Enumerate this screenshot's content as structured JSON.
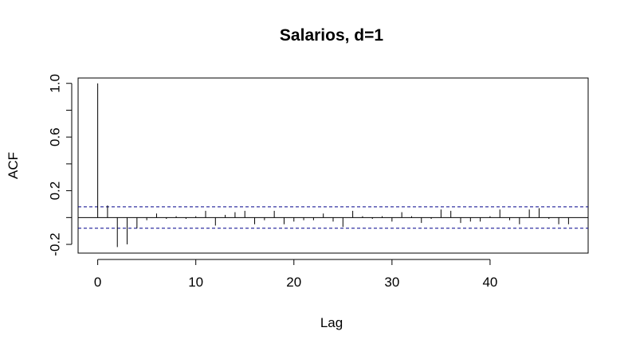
{
  "chart_data": {
    "type": "bar",
    "title": "Salarios, d=1",
    "xlabel": "Lag",
    "ylabel": "ACF",
    "xlim": [
      -2,
      50
    ],
    "ylim": [
      -0.265,
      1.04
    ],
    "x_ticks": [
      0,
      10,
      20,
      30,
      40
    ],
    "x_tick_labels": [
      "0",
      "10",
      "20",
      "30",
      "40"
    ],
    "y_ticks": [
      -0.2,
      0.2,
      0.6,
      1.0
    ],
    "y_tick_labels": [
      "-0.2",
      "0.2",
      "0.6",
      "1.0"
    ],
    "y_minor_ticks": [
      0.0,
      0.4,
      0.8
    ],
    "confidence_band": [
      -0.08,
      0.08
    ],
    "grid": false,
    "lags": [
      0,
      1,
      2,
      3,
      4,
      5,
      6,
      7,
      8,
      9,
      10,
      11,
      12,
      13,
      14,
      15,
      16,
      17,
      18,
      19,
      20,
      21,
      22,
      23,
      24,
      25,
      26,
      27,
      28,
      29,
      30,
      31,
      32,
      33,
      34,
      35,
      36,
      37,
      38,
      39,
      40,
      41,
      42,
      43,
      44,
      45,
      46,
      47,
      48
    ],
    "values": [
      1.0,
      0.09,
      -0.22,
      -0.2,
      -0.08,
      -0.02,
      0.03,
      -0.01,
      0.01,
      -0.01,
      0.01,
      0.05,
      -0.06,
      0.02,
      0.04,
      0.05,
      -0.05,
      -0.02,
      0.05,
      -0.05,
      -0.03,
      -0.02,
      -0.02,
      0.03,
      -0.03,
      -0.07,
      0.05,
      0.01,
      -0.01,
      0.01,
      -0.03,
      0.04,
      0.01,
      -0.04,
      -0.01,
      0.06,
      0.05,
      -0.04,
      -0.03,
      -0.03,
      0.01,
      0.06,
      -0.02,
      -0.05,
      0.06,
      0.07,
      -0.01,
      -0.05,
      -0.05
    ]
  }
}
